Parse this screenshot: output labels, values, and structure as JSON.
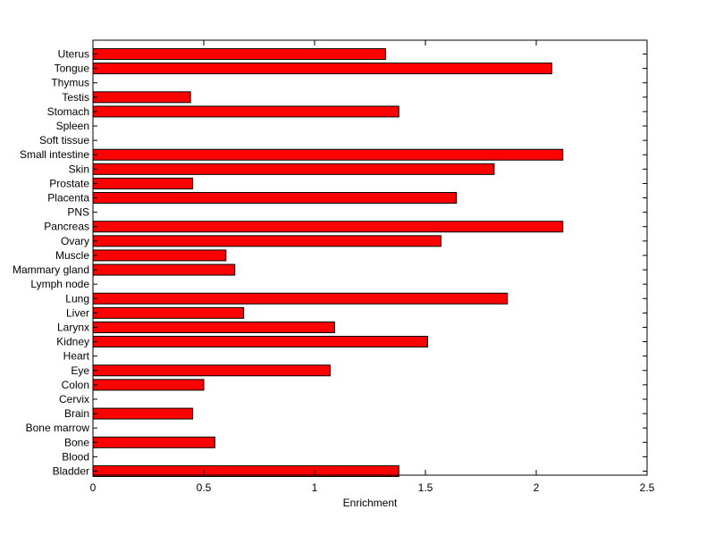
{
  "chart_data": {
    "type": "bar",
    "orientation": "horizontal",
    "categories": [
      "Uterus",
      "Tongue",
      "Thymus",
      "Testis",
      "Stomach",
      "Spleen",
      "Soft tissue",
      "Small intestine",
      "Skin",
      "Prostate",
      "Placenta",
      "PNS",
      "Pancreas",
      "Ovary",
      "Muscle",
      "Mammary gland",
      "Lymph node",
      "Lung",
      "Liver",
      "Larynx",
      "Kidney",
      "Heart",
      "Eye",
      "Colon",
      "Cervix",
      "Brain",
      "Bone marrow",
      "Bone",
      "Blood",
      "Bladder"
    ],
    "values": [
      1.32,
      2.07,
      0,
      0.44,
      1.38,
      0,
      0,
      2.12,
      1.81,
      0.45,
      1.64,
      0,
      2.12,
      1.57,
      0.6,
      0.64,
      0,
      1.87,
      0.68,
      1.09,
      1.51,
      0,
      1.07,
      0.5,
      0,
      0.45,
      0,
      0.55,
      0,
      1.38
    ],
    "xlabel": "Enrichment",
    "ylabel": "",
    "xlim": [
      0,
      2.5
    ],
    "xticks": [
      "0",
      "0.5",
      "1",
      "1.5",
      "2",
      "2.5"
    ],
    "bar_color": "#ff0000",
    "edge_color": "#000000",
    "grid": false,
    "legend": "none"
  }
}
